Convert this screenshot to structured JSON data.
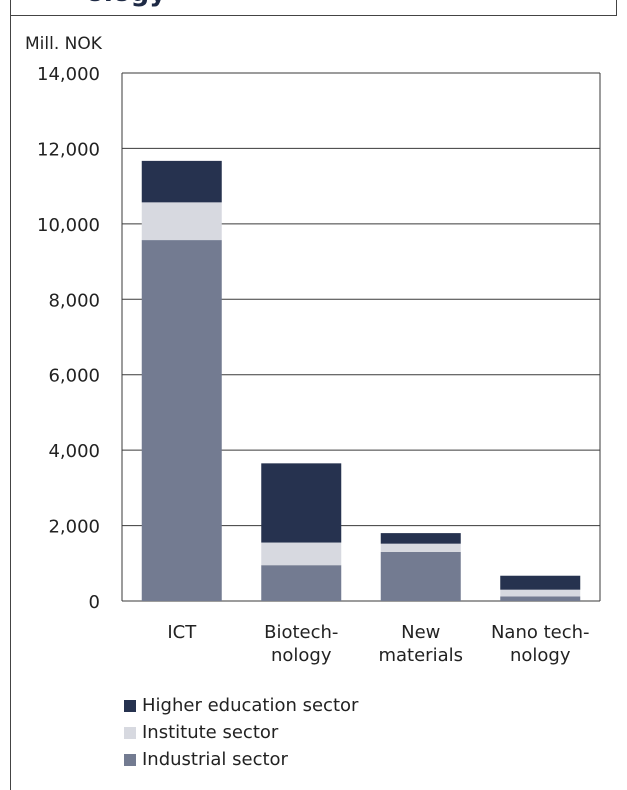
{
  "chart_data": {
    "type": "bar",
    "stacked": true,
    "title_fragment": "ology",
    "ylabel": "Mill. NOK",
    "ylim": [
      0,
      14000
    ],
    "yticks": [
      "0",
      "2,000",
      "4,000",
      "6,000",
      "8,000",
      "10,000",
      "12,000",
      "14,000"
    ],
    "categories": [
      [
        "ICT"
      ],
      [
        "Biotech-",
        "nology"
      ],
      [
        "New",
        "materials"
      ],
      [
        "Nano tech-",
        "nology"
      ]
    ],
    "series": [
      {
        "name": "Industrial sector",
        "color": "#737b91",
        "values": [
          9570,
          950,
          1300,
          120
        ]
      },
      {
        "name": "Institute sector",
        "color": "#d7d9e0",
        "values": [
          1000,
          600,
          220,
          180
        ]
      },
      {
        "name": "Higher education sector",
        "color": "#26324f",
        "values": [
          1100,
          2100,
          280,
          370
        ]
      }
    ],
    "legend_order": [
      "Higher education sector",
      "Institute sector",
      "Industrial sector"
    ],
    "grid": true
  }
}
